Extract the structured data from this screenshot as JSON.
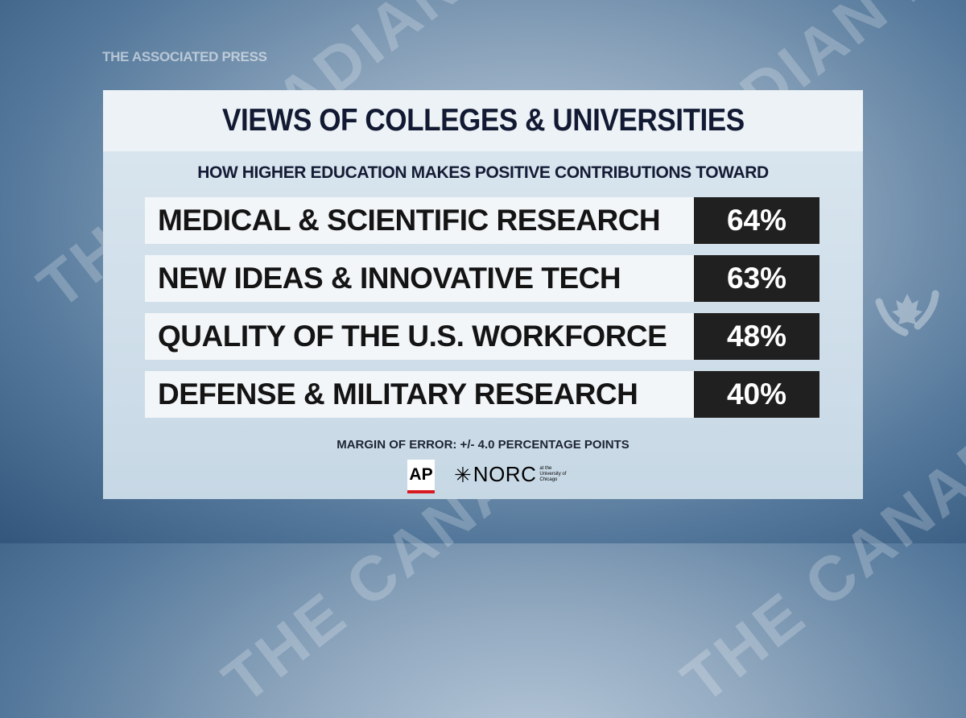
{
  "brand_header": "THE ASSOCIATED PRESS",
  "watermark": "THE CANADIAN PRESS",
  "title": "VIEWS OF COLLEGES & UNIVERSITIES",
  "subtitle": "HOW HIGHER EDUCATION MAKES POSITIVE CONTRIBUTIONS TOWARD",
  "chart_data": {
    "type": "table",
    "title": "VIEWS OF COLLEGES & UNIVERSITIES",
    "subtitle": "HOW HIGHER EDUCATION MAKES POSITIVE CONTRIBUTIONS TOWARD",
    "rows": [
      {
        "label": "MEDICAL & SCIENTIFIC RESEARCH",
        "value": "64%"
      },
      {
        "label": "NEW IDEAS & INNOVATIVE TECH",
        "value": "63%"
      },
      {
        "label": "QUALITY OF THE U.S. WORKFORCE",
        "value": "48%"
      },
      {
        "label": "DEFENSE & MILITARY RESEARCH",
        "value": "40%"
      }
    ],
    "values": [
      64,
      63,
      48,
      40
    ],
    "unit": "%"
  },
  "note": "MARGIN OF ERROR: +/- 4.0 PERCENTAGE POINTS",
  "logos": {
    "ap": "AP",
    "norc": "NORC",
    "norc_sub": "at the University of Chicago"
  },
  "colors": {
    "value_box": "#202020",
    "label_box": "#f3f6f9",
    "title_text": "#121a33",
    "ap_red": "#d71920"
  }
}
